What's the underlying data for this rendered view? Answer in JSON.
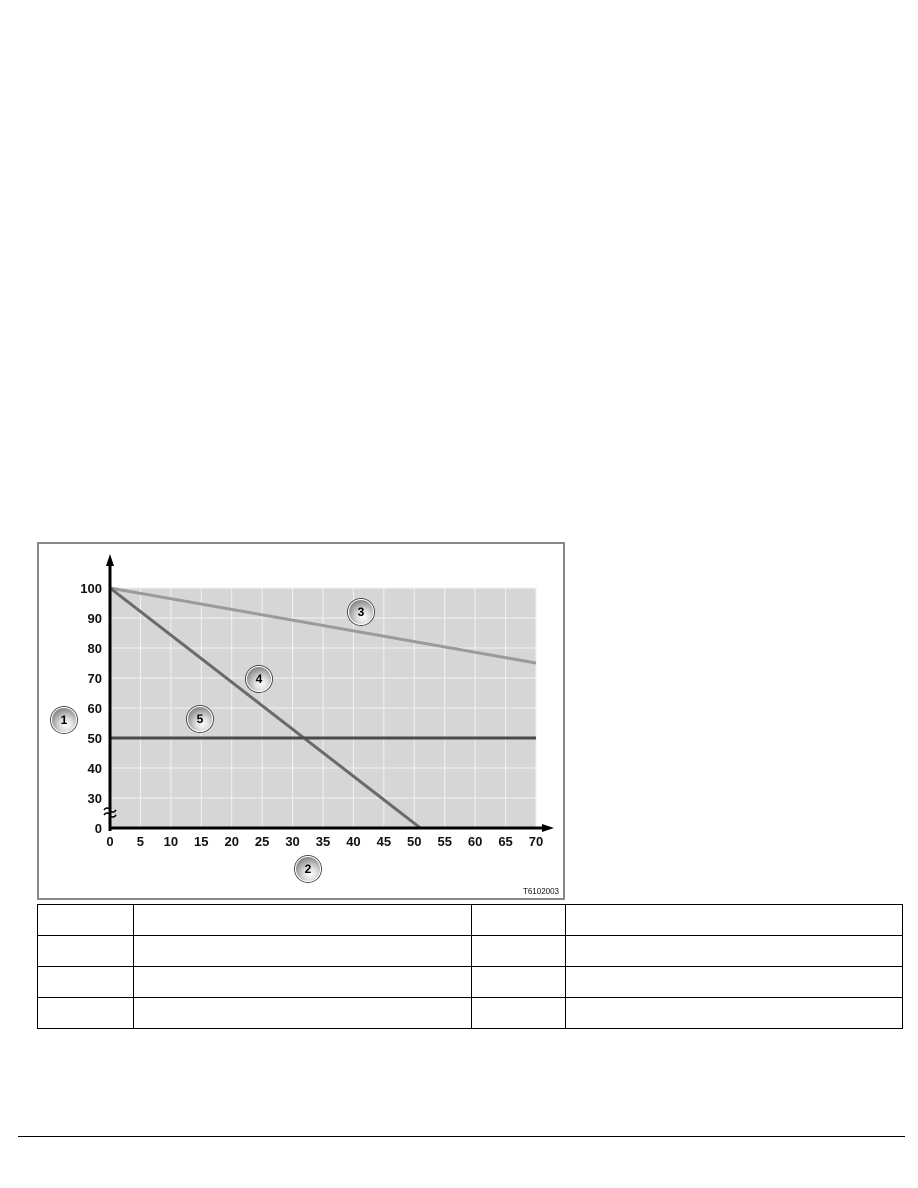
{
  "chart_data": {
    "type": "line",
    "title": "",
    "xlabel": "",
    "ylabel": "",
    "x_ticks": [
      "0",
      "5",
      "10",
      "15",
      "20",
      "25",
      "30",
      "35",
      "40",
      "45",
      "50",
      "55",
      "60",
      "65",
      "70"
    ],
    "y_ticks": [
      "0",
      "30",
      "40",
      "50",
      "60",
      "70",
      "80",
      "90",
      "100"
    ],
    "xlim": [
      0,
      70
    ],
    "ylim": [
      0,
      100
    ],
    "y_axis_break": [
      0,
      30
    ],
    "grid": true,
    "series": [
      {
        "callout": "3",
        "points": [
          [
            0,
            100
          ],
          [
            70,
            75
          ]
        ],
        "color": "#9a9a9a"
      },
      {
        "callout": "4",
        "points": [
          [
            0,
            100
          ],
          [
            51,
            0
          ]
        ],
        "color": "#6a6a6a"
      },
      {
        "callout": "5",
        "points": [
          [
            0,
            50
          ],
          [
            70,
            50
          ]
        ],
        "color": "#4a4a4a"
      }
    ],
    "callouts": {
      "y_axis": "1",
      "x_axis": "2",
      "line_3": "3",
      "line_4": "4",
      "line_5": "5"
    }
  },
  "figure_code": "T6102003",
  "table": {
    "rows": [
      [
        "",
        "",
        "",
        ""
      ],
      [
        "",
        "",
        "",
        ""
      ],
      [
        "",
        "",
        "",
        ""
      ],
      [
        "",
        "",
        "",
        ""
      ]
    ]
  }
}
